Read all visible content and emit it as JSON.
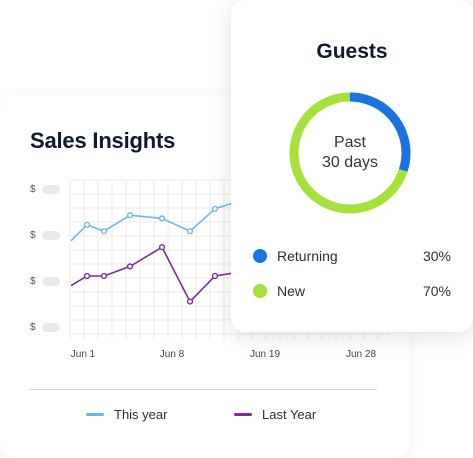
{
  "sales": {
    "title": "Sales Insights",
    "y_ticks": [
      "$",
      "$",
      "$",
      "$"
    ],
    "x_ticks": [
      "Jun 1",
      "Jun 8",
      "Jun 19",
      "Jun 28"
    ],
    "legend": [
      {
        "label": "This year",
        "color": "#6cb8e4"
      },
      {
        "label": "Last Year",
        "color": "#7a2e96"
      }
    ]
  },
  "guests": {
    "title": "Guests",
    "center_line1": "Past",
    "center_line2": "30 days",
    "items": [
      {
        "label": "Returning",
        "value": "30%",
        "color": "#1a73e0"
      },
      {
        "label": "New",
        "value": "70%",
        "color": "#a6e03a"
      }
    ]
  },
  "chart_data": {
    "type": "line",
    "title": "Sales Insights",
    "xlabel": "",
    "ylabel": "",
    "x_tick_labels": [
      "Jun 1",
      "Jun 8",
      "Jun 19",
      "Jun 28"
    ],
    "y_tick_labels": [
      "$",
      "$",
      "$",
      "$"
    ],
    "ylim": [
      0,
      100
    ],
    "grid": true,
    "legend_position": "bottom",
    "series": [
      {
        "name": "This year",
        "color": "#6cb8e4",
        "values": [
          62,
          72,
          68,
          78,
          76,
          68,
          82,
          86
        ]
      },
      {
        "name": "Last Year",
        "color": "#7a2e96",
        "values": [
          34,
          40,
          40,
          46,
          58,
          24,
          40,
          42
        ]
      }
    ]
  }
}
